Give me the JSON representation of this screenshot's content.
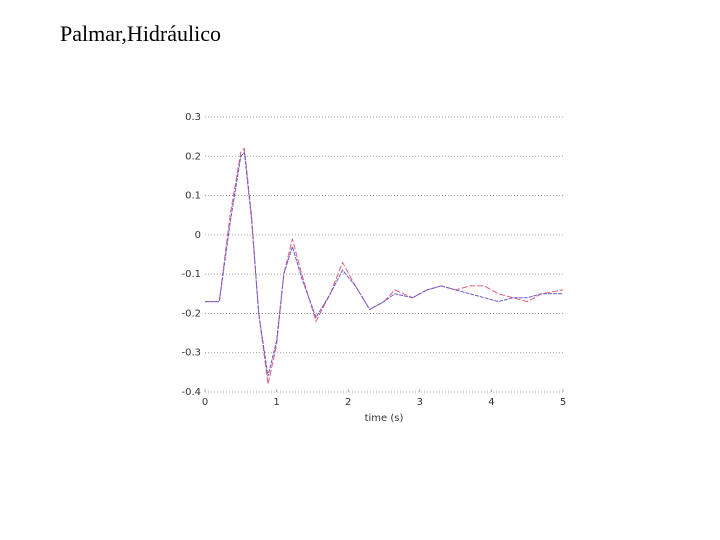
{
  "chart_data": {
    "type": "line",
    "title": "Palmar,Hidráulico",
    "xlabel": "time (s)",
    "x": [
      0,
      0.2,
      0.35,
      0.5,
      0.55,
      0.65,
      0.75,
      0.88,
      1.0,
      1.1,
      1.22,
      1.35,
      1.55,
      1.75,
      1.92,
      2.1,
      2.3,
      2.5,
      2.65,
      2.9,
      3.1,
      3.3,
      3.5,
      3.7,
      3.9,
      4.1,
      4.3,
      4.5,
      4.7,
      5.0
    ],
    "series": [
      {
        "color": "#e0607a",
        "values": [
          -0.17,
          -0.17,
          0.05,
          0.21,
          0.22,
          0.05,
          -0.2,
          -0.38,
          -0.28,
          -0.1,
          -0.01,
          -0.1,
          -0.22,
          -0.15,
          -0.07,
          -0.13,
          -0.19,
          -0.17,
          -0.14,
          -0.16,
          -0.14,
          -0.13,
          -0.14,
          -0.13,
          -0.13,
          -0.15,
          -0.16,
          -0.17,
          -0.15,
          -0.14
        ]
      },
      {
        "color": "#6a5acd",
        "values": [
          -0.17,
          -0.17,
          0.03,
          0.2,
          0.21,
          0.04,
          -0.2,
          -0.36,
          -0.27,
          -0.1,
          -0.03,
          -0.11,
          -0.21,
          -0.15,
          -0.09,
          -0.13,
          -0.19,
          -0.17,
          -0.15,
          -0.16,
          -0.14,
          -0.13,
          -0.14,
          -0.15,
          -0.16,
          -0.17,
          -0.16,
          -0.16,
          -0.15,
          -0.15
        ]
      }
    ],
    "xlim": [
      0,
      5
    ],
    "xticks": [
      0,
      1,
      2,
      3,
      4,
      5
    ],
    "ylim": [
      -0.4,
      0.3
    ],
    "yticks": [
      -0.4,
      -0.3,
      -0.2,
      -0.1,
      0,
      0.1,
      0.2,
      0.3
    ],
    "grid": true
  }
}
